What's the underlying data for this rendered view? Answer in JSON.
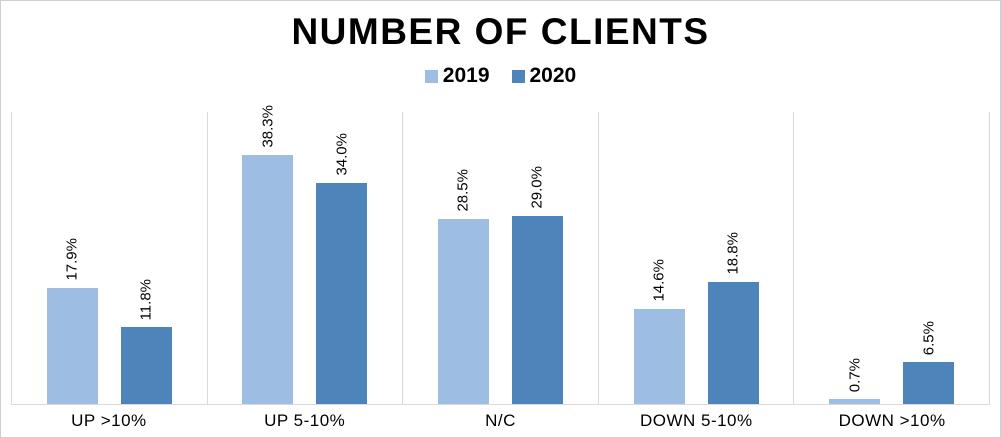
{
  "chart_data": {
    "type": "bar",
    "title": "NUMBER OF CLIENTS",
    "categories": [
      "UP >10%",
      "UP 5-10%",
      "N/C",
      "DOWN 5-10%",
      "DOWN >10%"
    ],
    "series": [
      {
        "name": "2019",
        "color": "#9DBEE2",
        "values": [
          17.9,
          38.3,
          28.5,
          14.6,
          0.7
        ]
      },
      {
        "name": "2020",
        "color": "#4D84BA",
        "values": [
          11.8,
          34.0,
          29.0,
          18.8,
          6.5
        ]
      }
    ],
    "value_suffix": "%",
    "data_label_decimals": 1,
    "data_label_rotation": 90,
    "ylim": [
      0,
      45
    ],
    "y_axis_visible": false,
    "grid": "vertical category separators only",
    "legend_position": "top",
    "colors": {
      "gridline": "#d9d9d9",
      "border": "#cfcfcf",
      "text": "#000000",
      "background": "#ffffff"
    }
  }
}
